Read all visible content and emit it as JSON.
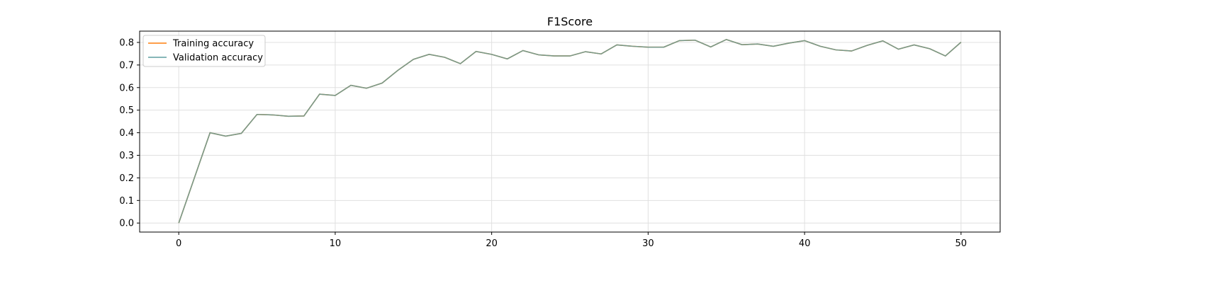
{
  "chart_data": {
    "type": "line",
    "title": "F1Score",
    "xlabel": "",
    "ylabel": "",
    "xlim": [
      -2.5,
      52.5
    ],
    "ylim": [
      -0.04,
      0.85
    ],
    "xticks": [
      0,
      10,
      20,
      30,
      40,
      50
    ],
    "yticks": [
      0.0,
      0.1,
      0.2,
      0.3,
      0.4,
      0.5,
      0.6,
      0.7,
      0.8
    ],
    "xtick_labels": [
      "0",
      "10",
      "20",
      "30",
      "40",
      "50"
    ],
    "ytick_labels": [
      "0.0",
      "0.1",
      "0.2",
      "0.3",
      "0.4",
      "0.5",
      "0.6",
      "0.7",
      "0.8"
    ],
    "grid": true,
    "legend_position": "top-left",
    "x": [
      0,
      1,
      2,
      3,
      4,
      5,
      6,
      7,
      8,
      9,
      10,
      11,
      12,
      13,
      14,
      15,
      16,
      17,
      18,
      19,
      20,
      21,
      22,
      23,
      24,
      25,
      26,
      27,
      28,
      29,
      30,
      31,
      32,
      33,
      34,
      35,
      36,
      37,
      38,
      39,
      40,
      41,
      42,
      43,
      44,
      45,
      46,
      47,
      48,
      49,
      50
    ],
    "series": [
      {
        "name": "Training accuracy",
        "color": "#ff7f0e",
        "values": [
          0.0,
          0.2,
          0.4,
          0.385,
          0.397,
          0.481,
          0.479,
          0.473,
          0.474,
          0.571,
          0.565,
          0.61,
          0.597,
          0.62,
          0.676,
          0.725,
          0.747,
          0.734,
          0.706,
          0.76,
          0.747,
          0.727,
          0.764,
          0.745,
          0.74,
          0.74,
          0.759,
          0.749,
          0.789,
          0.783,
          0.779,
          0.779,
          0.808,
          0.81,
          0.78,
          0.813,
          0.79,
          0.793,
          0.783,
          0.797,
          0.808,
          0.783,
          0.767,
          0.762,
          0.787,
          0.807,
          0.77,
          0.789,
          0.772,
          0.74,
          0.801
        ]
      },
      {
        "name": "Validation accuracy",
        "color": "#5f9ea0",
        "values": [
          0.0,
          0.2,
          0.4,
          0.385,
          0.397,
          0.481,
          0.479,
          0.473,
          0.474,
          0.571,
          0.565,
          0.61,
          0.597,
          0.62,
          0.676,
          0.725,
          0.747,
          0.734,
          0.706,
          0.76,
          0.747,
          0.727,
          0.764,
          0.745,
          0.74,
          0.74,
          0.759,
          0.749,
          0.789,
          0.783,
          0.779,
          0.779,
          0.808,
          0.81,
          0.78,
          0.813,
          0.79,
          0.793,
          0.783,
          0.797,
          0.808,
          0.783,
          0.767,
          0.762,
          0.787,
          0.807,
          0.77,
          0.789,
          0.772,
          0.74,
          0.801
        ]
      }
    ]
  }
}
